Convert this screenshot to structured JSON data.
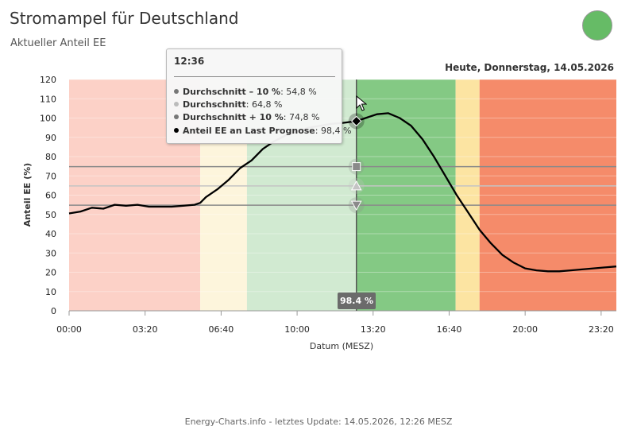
{
  "header": {
    "title": "Stromampel für Deutschland",
    "subtitle": "Aktueller Anteil EE",
    "status_color": "#66bb66",
    "date_label": "Heute, Donnerstag, 14.05.2026"
  },
  "footer": {
    "text": "Energy-Charts.info - letztes Update: 14.05.2026, 12:26 MESZ"
  },
  "tooltip": {
    "time": "12:36",
    "rows": [
      {
        "name": "Durchschnitt – 10 %",
        "value": ": 54,8 %",
        "color": "#777777"
      },
      {
        "name": "Durchschnitt",
        "value": ": 64,8 %",
        "color": "#bbbbbb"
      },
      {
        "name": "Durchschnitt + 10 %",
        "value": ": 74,8 %",
        "color": "#777777"
      },
      {
        "name": "Anteil EE an Last Prognose",
        "value": ": 98,4 %",
        "color": "#000000"
      }
    ]
  },
  "crosshair": {
    "x": 12.6,
    "label": "98.4 %"
  },
  "chart_data": {
    "type": "line",
    "xlabel": "Datum (MESZ)",
    "ylabel": "Anteil EE (%)",
    "xlim": [
      0,
      24
    ],
    "ylim": [
      0,
      120
    ],
    "xticks": [
      0,
      3.333,
      6.667,
      10,
      13.333,
      16.667,
      20,
      23.333
    ],
    "xtick_labels": [
      "00:00",
      "03:20",
      "06:40",
      "10:00",
      "13:20",
      "16:40",
      "20:00",
      "23:20"
    ],
    "yticks": [
      0,
      10,
      20,
      30,
      40,
      50,
      60,
      70,
      80,
      90,
      100,
      110,
      120
    ],
    "bands": [
      {
        "from": 0,
        "to": 5.75,
        "color": "#fcd1c7"
      },
      {
        "from": 5.75,
        "to": 7.8,
        "color": "#fdf5dc"
      },
      {
        "from": 7.8,
        "to": 12.6,
        "color": "#d1ead1"
      },
      {
        "from": 12.6,
        "to": 16.95,
        "color": "#84c984"
      },
      {
        "from": 16.95,
        "to": 18.0,
        "color": "#fce4a2"
      },
      {
        "from": 18.0,
        "to": 24,
        "color": "#f58b6a"
      }
    ],
    "reference_lines": [
      {
        "name": "Durchschnitt + 10 %",
        "value": 74.8,
        "color": "#8a8a8a",
        "marker": "square"
      },
      {
        "name": "Durchschnitt",
        "value": 64.8,
        "color": "#c4c4c4",
        "marker": "triangle-up"
      },
      {
        "name": "Durchschnitt – 10 %",
        "value": 54.8,
        "color": "#8a8a8a",
        "marker": "triangle-down"
      }
    ],
    "series": [
      {
        "name": "Anteil EE an Last Prognose",
        "color": "#000000",
        "x": [
          0,
          0.5,
          1,
          1.5,
          2,
          2.5,
          3,
          3.5,
          4,
          4.5,
          5,
          5.5,
          5.75,
          6,
          6.5,
          7,
          7.5,
          8,
          8.5,
          9,
          9.5,
          10,
          10.5,
          11,
          11.5,
          12,
          12.6,
          13,
          13.5,
          14,
          14.5,
          15,
          15.5,
          16,
          16.5,
          17,
          17.5,
          18,
          18.5,
          19,
          19.5,
          20,
          20.5,
          21,
          21.5,
          22,
          22.5,
          23,
          23.5,
          24
        ],
        "y": [
          50.5,
          51.5,
          53.5,
          53,
          55,
          54.5,
          55,
          54,
          54,
          54,
          54.5,
          55,
          56,
          59,
          63,
          68,
          74,
          78,
          84,
          88,
          91,
          93,
          95,
          96,
          97,
          97.5,
          98.4,
          100,
          102,
          102.5,
          100,
          96,
          89,
          80,
          70,
          60,
          51,
          42,
          35,
          29,
          25,
          22,
          21,
          20.5,
          20.5,
          21,
          21.5,
          22,
          22.5,
          23
        ]
      }
    ]
  }
}
